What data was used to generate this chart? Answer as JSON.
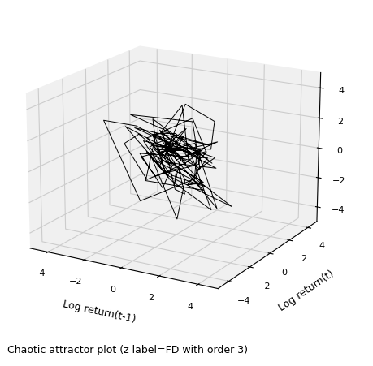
{
  "xlabel": "Log return(t-1)",
  "ylabel": "Log return(t)",
  "title": "Chaotic attractor plot (z label=FD with order 3)",
  "xlim": [
    -5,
    5
  ],
  "ylim": [
    -5,
    5
  ],
  "zlim": [
    -5,
    5
  ],
  "xticks": [
    -4,
    -2,
    0,
    2,
    4
  ],
  "yticks": [
    -4,
    -2,
    0,
    2,
    4
  ],
  "zticks": [
    -4,
    -2,
    0,
    2,
    4
  ],
  "line_color": "black",
  "line_width": 0.7,
  "n_points": 120,
  "seed": 42,
  "scale": 4.0,
  "elev": 18,
  "azim": -60,
  "figsize": [
    4.6,
    4.52
  ],
  "dpi": 100
}
